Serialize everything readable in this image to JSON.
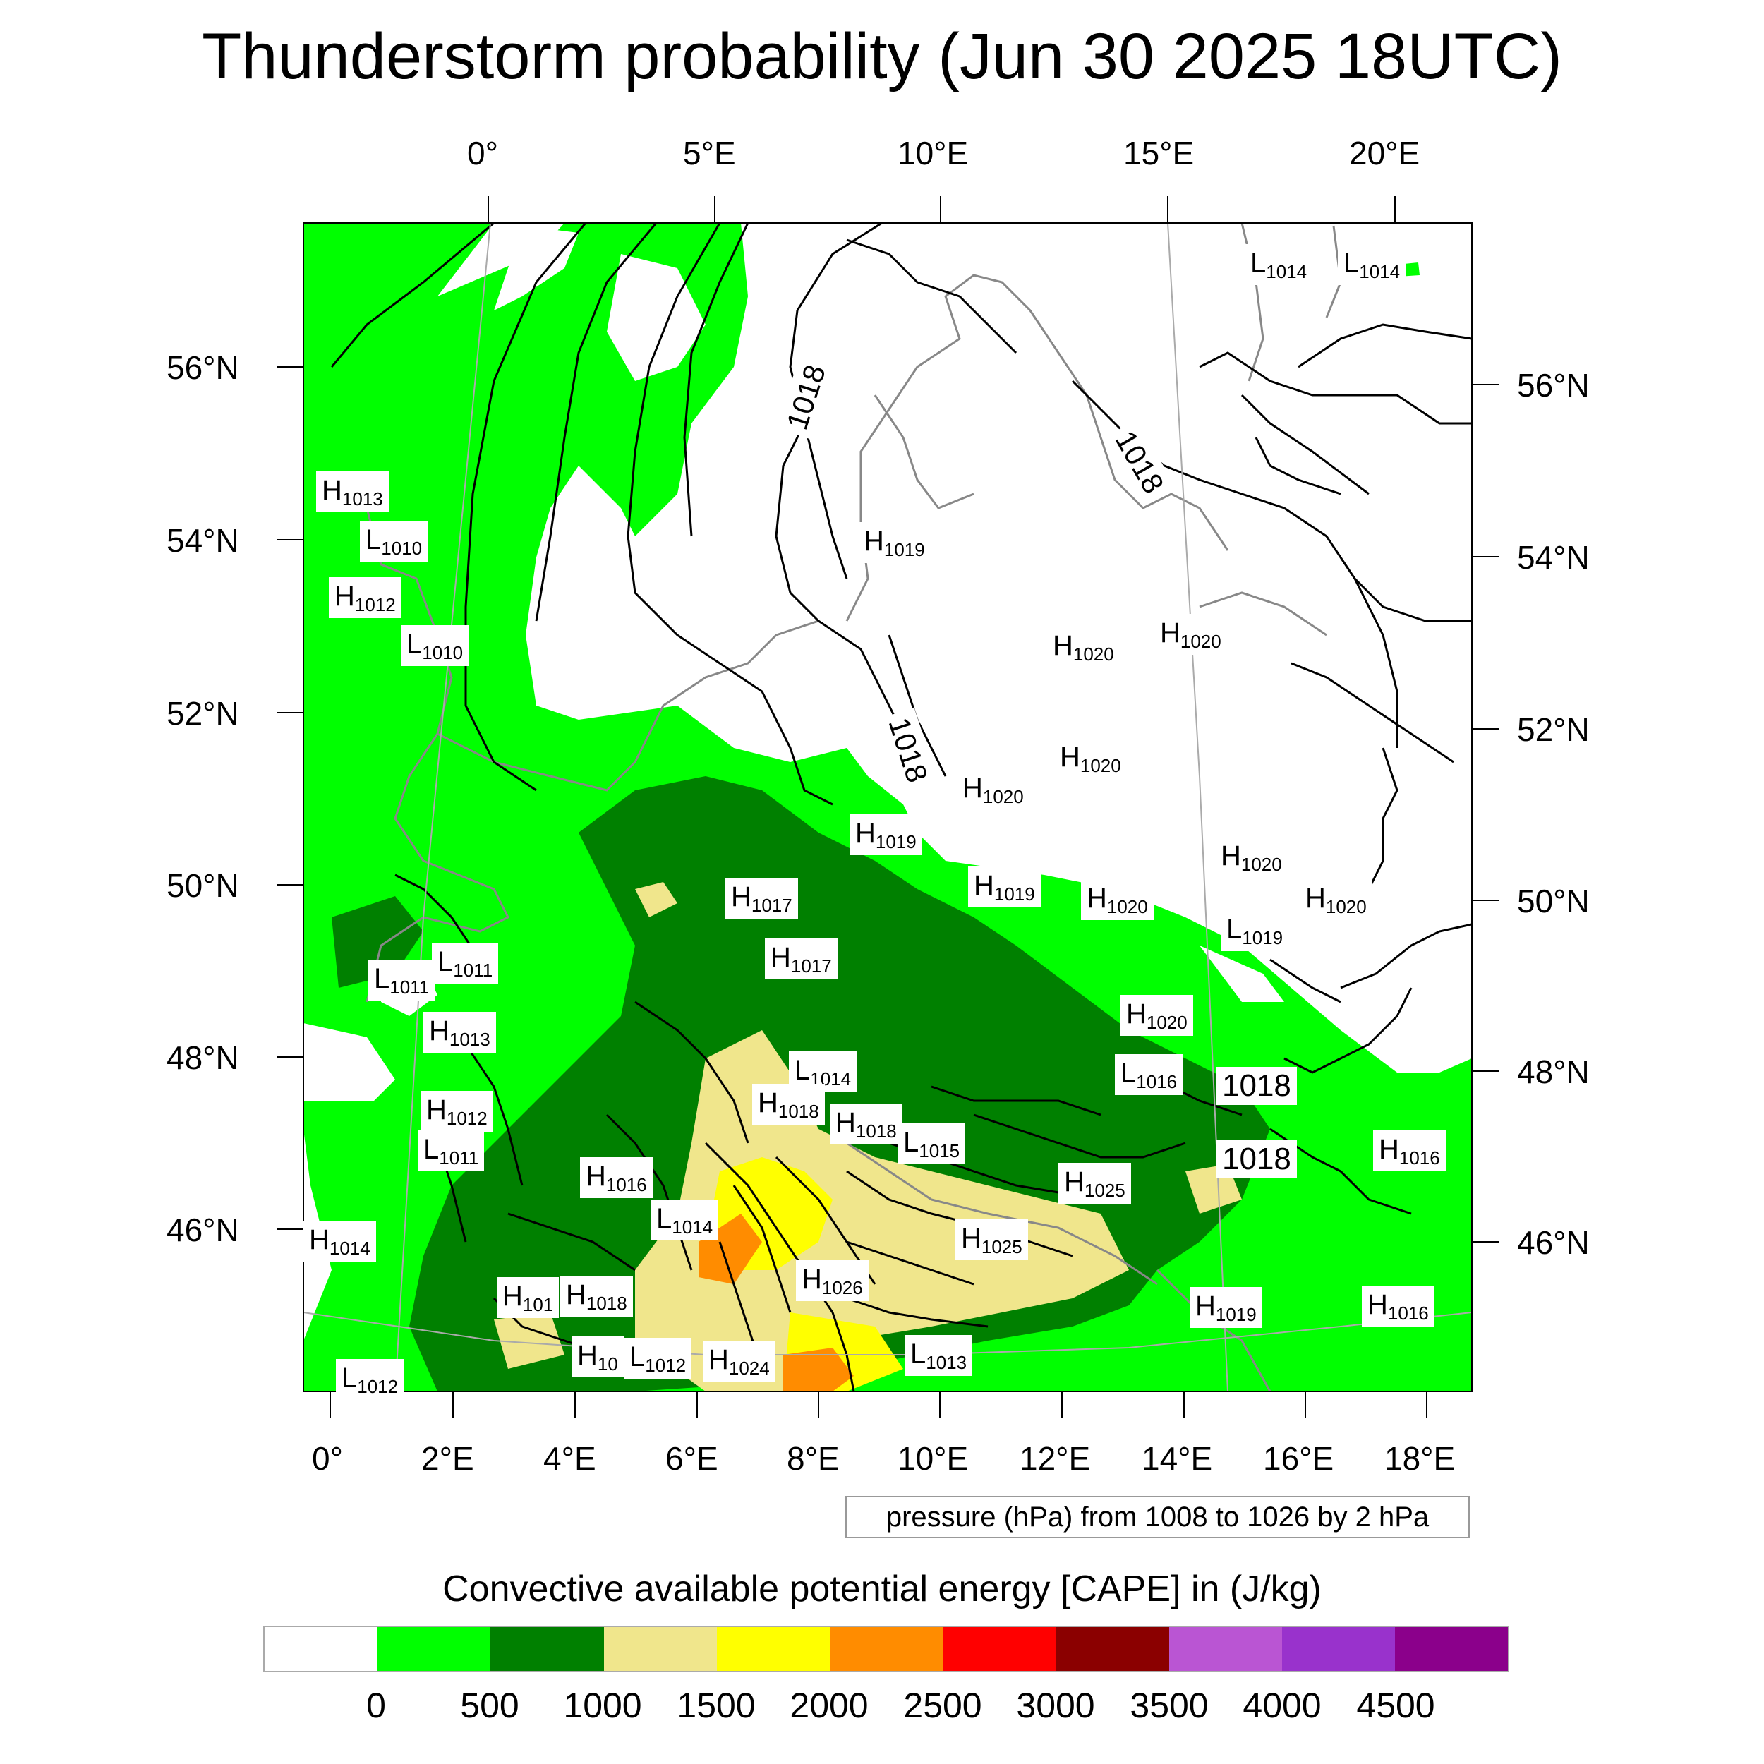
{
  "title": "Thunderstorm probability (Jun 30 2025 18UTC)",
  "top_lon_labels": [
    "0°",
    "5°E",
    "10°E",
    "15°E",
    "20°E"
  ],
  "left_lat_labels": [
    "56°N",
    "54°N",
    "52°N",
    "50°N",
    "48°N",
    "46°N"
  ],
  "right_lat_labels": [
    "56°N",
    "54°N",
    "52°N",
    "50°N",
    "48°N",
    "46°N"
  ],
  "bottom_lon_labels": [
    "0°",
    "2°E",
    "4°E",
    "6°E",
    "8°E",
    "10°E",
    "12°E",
    "14°E",
    "16°E",
    "18°E"
  ],
  "note": "pressure (hPa) from 1008 to 1026 by 2 hPa",
  "colorbar": {
    "title": "Convective available potential energy [CAPE] in (J/kg)",
    "colors": [
      "#ffffff",
      "#00ff00",
      "#008000",
      "#f0e68c",
      "#ffff00",
      "#ff8c00",
      "#ff0000",
      "#8b0000",
      "#ba55d3",
      "#9932cc",
      "#8b008b"
    ],
    "ticks": [
      "0",
      "500",
      "1000",
      "1500",
      "2000",
      "2500",
      "3000",
      "3500",
      "4000",
      "4500"
    ]
  },
  "isobar_labels": [
    "1018",
    "1018",
    "1018",
    "1018",
    "1018"
  ],
  "pressure_centers": [
    {
      "t": "H",
      "v": "1013"
    },
    {
      "t": "L",
      "v": "1010"
    },
    {
      "t": "H",
      "v": "1012"
    },
    {
      "t": "L",
      "v": "1010"
    },
    {
      "t": "H",
      "v": "1019"
    },
    {
      "t": "H",
      "v": "1020"
    },
    {
      "t": "H",
      "v": "1020"
    },
    {
      "t": "H",
      "v": "1020"
    },
    {
      "t": "H",
      "v": "1020"
    },
    {
      "t": "H",
      "v": "1019"
    },
    {
      "t": "H",
      "v": "1020"
    },
    {
      "t": "H",
      "v": "1020"
    },
    {
      "t": "H",
      "v": "1017"
    },
    {
      "t": "H",
      "v": "1019"
    },
    {
      "t": "H",
      "v": "1020"
    },
    {
      "t": "L",
      "v": "1019"
    },
    {
      "t": "L",
      "v": "1011"
    },
    {
      "t": "L",
      "v": "1011"
    },
    {
      "t": "H",
      "v": "1017"
    },
    {
      "t": "H",
      "v": "1013"
    },
    {
      "t": "H",
      "v": "1020"
    },
    {
      "t": "L",
      "v": "1014"
    },
    {
      "t": "L",
      "v": "1016"
    },
    {
      "t": "H",
      "v": "1018"
    },
    {
      "t": "H",
      "v": "1018"
    },
    {
      "t": "H",
      "v": "1012"
    },
    {
      "t": "L",
      "v": "1011"
    },
    {
      "t": "L",
      "v": "1015"
    },
    {
      "t": "H",
      "v": "1016"
    },
    {
      "t": "H",
      "v": "1016"
    },
    {
      "t": "H",
      "v": "1025"
    },
    {
      "t": "L",
      "v": "1014"
    },
    {
      "t": "H",
      "v": "1014"
    },
    {
      "t": "H",
      "v": "1025"
    },
    {
      "t": "H",
      "v": "1026"
    },
    {
      "t": "H",
      "v": "101"
    },
    {
      "t": "H",
      "v": "1018"
    },
    {
      "t": "H",
      "v": "1019"
    },
    {
      "t": "H",
      "v": "1016"
    },
    {
      "t": "H",
      "v": "10"
    },
    {
      "t": "L",
      "v": "1012"
    },
    {
      "t": "H",
      "v": "1024"
    },
    {
      "t": "L",
      "v": "1013"
    },
    {
      "t": "L",
      "v": "1012"
    },
    {
      "t": "L",
      "v": "1014"
    },
    {
      "t": "L",
      "v": "1014"
    }
  ]
}
